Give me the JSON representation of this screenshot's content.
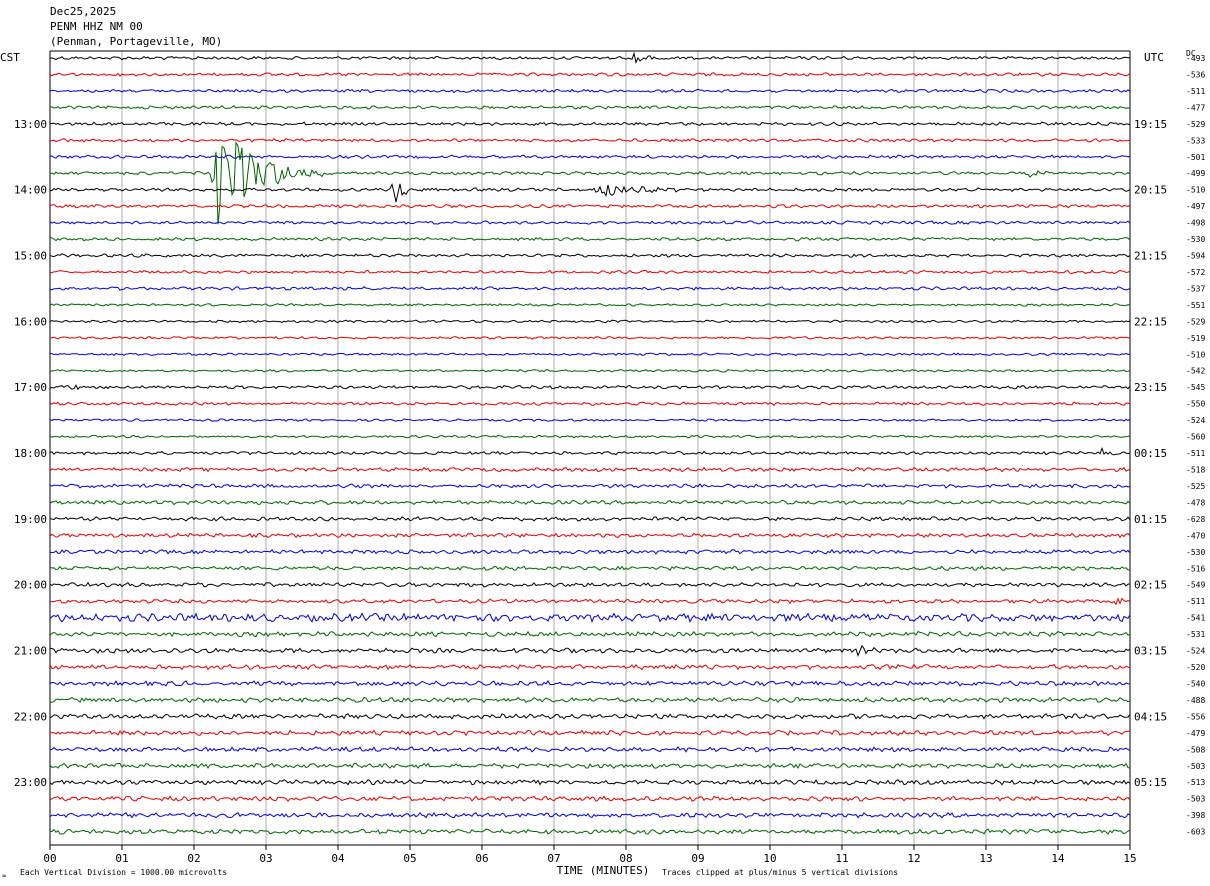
{
  "header": {
    "date": "Dec25,2025",
    "station": "PENM HHZ NM 00",
    "location": "(Penman, Portageville, MO)"
  },
  "labels": {
    "left_tz": "CST",
    "right_tz": "UTC",
    "dc": "DC",
    "xlabel": "TIME (MINUTES)",
    "scale_note": "Each Vertical Division = 1000.00 microvolts",
    "clip_note": "Traces clipped at plus/minus 5 vertical divisions"
  },
  "colors": {
    "trace_cycle": [
      "#000000",
      "#e00000",
      "#0000d0",
      "#006400"
    ],
    "grid": "#000000",
    "text": "#000000"
  },
  "chart_data": {
    "type": "line",
    "title": "PENM HHZ NM 00",
    "xlabel": "TIME (MINUTES)",
    "xlim": [
      0,
      15
    ],
    "x_ticks": [
      "00",
      "01",
      "02",
      "03",
      "04",
      "05",
      "06",
      "07",
      "08",
      "09",
      "10",
      "11",
      "12",
      "13",
      "14",
      "15"
    ],
    "rows": 48,
    "minutes_per_row": 15,
    "start_local": "12:00",
    "left_hour_labels": [
      "13:00",
      "14:00",
      "15:00",
      "16:00",
      "17:00",
      "18:00",
      "19:00",
      "20:00",
      "21:00",
      "22:00",
      "23:00"
    ],
    "left_hour_label_rows": [
      4,
      8,
      12,
      16,
      20,
      24,
      28,
      32,
      36,
      40,
      44
    ],
    "right_hour_labels": [
      "19:15",
      "20:15",
      "21:15",
      "22:15",
      "23:15",
      "00:15",
      "01:15",
      "02:15",
      "03:15",
      "04:15",
      "05:15"
    ],
    "right_hour_label_rows": [
      4,
      8,
      12,
      16,
      20,
      24,
      28,
      32,
      36,
      40,
      44
    ],
    "dc_offsets": [
      -493,
      -536,
      -511,
      -477,
      -529,
      -533,
      -501,
      -499,
      -510,
      -497,
      -498,
      -530,
      -594,
      -572,
      -537,
      -551,
      -529,
      -519,
      -510,
      -542,
      -545,
      -550,
      -524,
      -560,
      -511,
      -518,
      -525,
      -478,
      -628,
      -470,
      -530,
      -516,
      -549,
      -511,
      -541,
      -531,
      -524,
      -520,
      -540,
      -488,
      -556,
      -479,
      -508,
      -503,
      -513,
      -503,
      -398,
      -603
    ],
    "noise_amplitude": [
      2,
      2,
      2,
      2,
      2,
      2,
      2,
      2,
      2,
      2,
      2,
      2,
      2,
      2,
      2,
      1.5,
      1.5,
      1.5,
      1.5,
      1.5,
      2,
      2,
      1.5,
      1.5,
      2,
      2.5,
      2.5,
      2.5,
      2.5,
      2.5,
      2.5,
      2.5,
      2.5,
      2.5,
      5,
      3,
      3,
      3,
      3,
      3,
      3,
      3,
      3,
      3,
      3,
      3,
      3,
      3
    ],
    "events": [
      {
        "row": 0,
        "minute": 8.1,
        "amplitude": 6,
        "duration": 0.5
      },
      {
        "row": 7,
        "minute": 2.3,
        "amplitude": 55,
        "duration": 1.5
      },
      {
        "row": 8,
        "minute": 4.8,
        "amplitude": 14,
        "duration": 0.5
      },
      {
        "row": 8,
        "minute": 7.6,
        "amplitude": 9,
        "duration": 1.3
      },
      {
        "row": 7,
        "minute": 13.6,
        "amplitude": 6,
        "duration": 0.4
      },
      {
        "row": 24,
        "minute": 14.6,
        "amplitude": 5,
        "duration": 0.6
      },
      {
        "row": 36,
        "minute": 11.2,
        "amplitude": 10,
        "duration": 0.3
      },
      {
        "row": 33,
        "minute": 14.8,
        "amplitude": 6,
        "duration": 0.4
      },
      {
        "row": 20,
        "minute": 0.2,
        "amplitude": 5,
        "duration": 0.3
      }
    ]
  }
}
